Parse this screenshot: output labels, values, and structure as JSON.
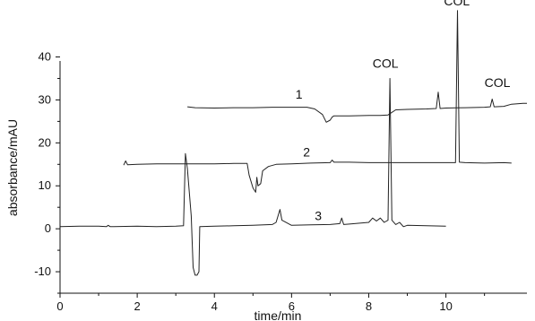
{
  "chart_data": {
    "type": "line",
    "xlabel": "time/min",
    "ylabel": "absorbance/mAU",
    "xlim": [
      0,
      12.1
    ],
    "ylim": [
      -15,
      47
    ],
    "x_ticks": [
      0,
      2,
      4,
      6,
      8,
      10
    ],
    "y_ticks": [
      -10,
      0,
      10,
      20,
      30,
      40
    ],
    "grid": false,
    "series": [
      {
        "name": "1",
        "color": "#222222",
        "points": [
          [
            3.3,
            28.4
          ],
          [
            3.5,
            28.2
          ],
          [
            4.0,
            28.1
          ],
          [
            4.5,
            28.2
          ],
          [
            5.0,
            28.2
          ],
          [
            5.5,
            28.3
          ],
          [
            6.0,
            28.3
          ],
          [
            6.4,
            28.3
          ],
          [
            6.6,
            27.9
          ],
          [
            6.8,
            26.6
          ],
          [
            6.9,
            24.8
          ],
          [
            7.0,
            25.3
          ],
          [
            7.05,
            26.0
          ],
          [
            7.1,
            26.3
          ],
          [
            7.5,
            26.3
          ],
          [
            8.0,
            26.4
          ],
          [
            8.3,
            26.4
          ],
          [
            8.5,
            26.5
          ],
          [
            8.7,
            27.7
          ],
          [
            9.0,
            27.8
          ],
          [
            9.5,
            27.9
          ],
          [
            9.75,
            28.0
          ],
          [
            9.8,
            31.8
          ],
          [
            9.85,
            28.0
          ],
          [
            10.0,
            28.1
          ],
          [
            10.5,
            28.2
          ],
          [
            11.0,
            28.3
          ],
          [
            11.15,
            28.4
          ],
          [
            11.2,
            30.2
          ],
          [
            11.25,
            28.4
          ],
          [
            11.5,
            28.5
          ],
          [
            11.7,
            29.0
          ],
          [
            12.0,
            29.2
          ],
          [
            12.1,
            29.2
          ]
        ]
      },
      {
        "name": "2",
        "color": "#222222",
        "points": [
          [
            1.65,
            14.8
          ],
          [
            1.7,
            15.8
          ],
          [
            1.75,
            14.9
          ],
          [
            2.0,
            15.0
          ],
          [
            2.5,
            15.1
          ],
          [
            3.0,
            15.1
          ],
          [
            3.5,
            15.1
          ],
          [
            4.0,
            15.1
          ],
          [
            4.5,
            15.2
          ],
          [
            4.85,
            15.2
          ],
          [
            4.9,
            12.5
          ],
          [
            5.0,
            9.5
          ],
          [
            5.07,
            8.5
          ],
          [
            5.1,
            12.0
          ],
          [
            5.13,
            10.0
          ],
          [
            5.2,
            10.5
          ],
          [
            5.25,
            13.5
          ],
          [
            5.4,
            14.5
          ],
          [
            5.6,
            15.0
          ],
          [
            6.0,
            15.1
          ],
          [
            6.5,
            15.3
          ],
          [
            7.0,
            15.4
          ],
          [
            7.05,
            16.0
          ],
          [
            7.1,
            15.5
          ],
          [
            7.5,
            15.5
          ],
          [
            8.0,
            15.4
          ],
          [
            8.5,
            15.4
          ],
          [
            9.0,
            15.4
          ],
          [
            9.5,
            15.4
          ],
          [
            10.0,
            15.4
          ],
          [
            10.25,
            15.4
          ],
          [
            10.3,
            50.8
          ],
          [
            10.35,
            15.5
          ],
          [
            10.5,
            15.4
          ],
          [
            11.0,
            15.3
          ],
          [
            11.5,
            15.4
          ],
          [
            11.7,
            15.3
          ]
        ]
      },
      {
        "name": "3",
        "color": "#222222",
        "points": [
          [
            0.0,
            0.5
          ],
          [
            0.5,
            0.6
          ],
          [
            1.0,
            0.6
          ],
          [
            1.2,
            0.5
          ],
          [
            1.25,
            0.8
          ],
          [
            1.3,
            0.5
          ],
          [
            2.0,
            0.6
          ],
          [
            2.5,
            0.5
          ],
          [
            3.0,
            0.6
          ],
          [
            3.2,
            0.7
          ],
          [
            3.25,
            17.5
          ],
          [
            3.3,
            14.0
          ],
          [
            3.4,
            3.0
          ],
          [
            3.45,
            -9.0
          ],
          [
            3.5,
            -10.8
          ],
          [
            3.55,
            -10.8
          ],
          [
            3.6,
            -10.0
          ],
          [
            3.62,
            0.5
          ],
          [
            4.0,
            0.6
          ],
          [
            4.5,
            0.7
          ],
          [
            5.0,
            0.8
          ],
          [
            5.5,
            1.0
          ],
          [
            5.6,
            1.5
          ],
          [
            5.7,
            4.5
          ],
          [
            5.75,
            2.0
          ],
          [
            6.0,
            0.8
          ],
          [
            6.5,
            0.9
          ],
          [
            7.0,
            1.0
          ],
          [
            7.25,
            1.2
          ],
          [
            7.3,
            2.5
          ],
          [
            7.35,
            1.0
          ],
          [
            7.5,
            1.1
          ],
          [
            8.0,
            1.5
          ],
          [
            8.1,
            2.5
          ],
          [
            8.2,
            1.8
          ],
          [
            8.3,
            2.5
          ],
          [
            8.4,
            1.5
          ],
          [
            8.5,
            2.0
          ],
          [
            8.55,
            35.0
          ],
          [
            8.6,
            2.0
          ],
          [
            8.7,
            1.0
          ],
          [
            8.8,
            1.5
          ],
          [
            8.9,
            0.5
          ],
          [
            9.0,
            0.8
          ],
          [
            9.5,
            0.7
          ],
          [
            10.0,
            0.6
          ]
        ]
      }
    ],
    "annotations": [
      {
        "text": "COL",
        "x": 8.1,
        "y": 37.5
      },
      {
        "text": "COL",
        "x": 9.95,
        "y": 52.0
      },
      {
        "text": "COL",
        "x": 11.0,
        "y": 33.0
      },
      {
        "text": "1",
        "x": 6.1,
        "y": 30.3
      },
      {
        "text": "2",
        "x": 6.3,
        "y": 16.8
      },
      {
        "text": "3",
        "x": 6.6,
        "y": 2.0
      }
    ]
  }
}
